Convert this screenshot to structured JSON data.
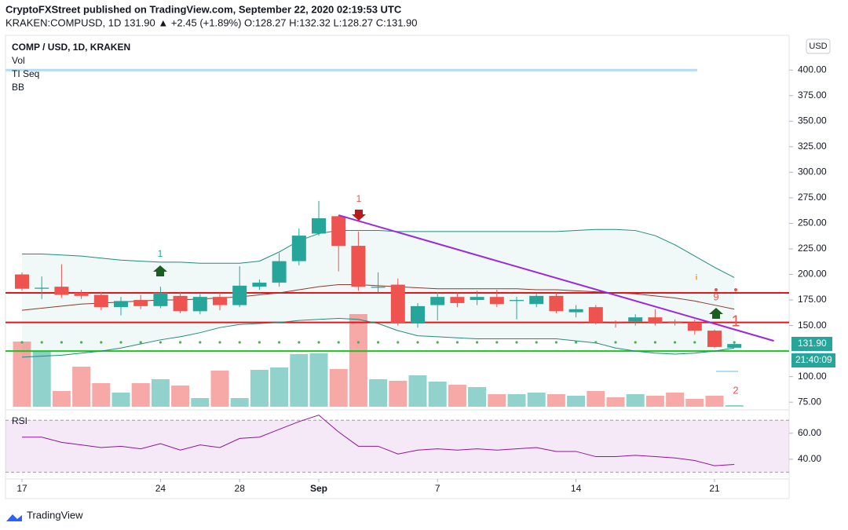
{
  "header": {
    "publisher": "CryptoFXStreet published on TradingView.com, September 22, 2020 02:19:53 UTC",
    "symbol_line": "KRAKEN:COMPUSD, 1D 131.90 ▲ +2.45 (+1.89%) O:128.27 H:132.32 L:128.27 C:131.90"
  },
  "legend": {
    "title": "COMP / USD, 1D, KRAKEN",
    "items": [
      "Vol",
      "TI Seq",
      "BB"
    ],
    "rsi": "RSI"
  },
  "footer": "TradingView",
  "chart_data": {
    "type": "candlestick",
    "currency": "USD",
    "open": [
      200,
      186,
      188,
      182,
      180,
      168,
      175,
      169,
      179,
      164,
      178,
      170,
      188,
      192,
      213,
      240,
      257,
      228,
      187,
      190,
      152,
      170,
      178,
      175,
      178,
      174,
      171,
      179,
      163,
      168,
      153,
      154,
      158,
      154,
      153,
      145,
      128.27
    ],
    "high": [
      202,
      198,
      210,
      185,
      183,
      178,
      180,
      188,
      183,
      181,
      182,
      208,
      195,
      221,
      245,
      272,
      258,
      242,
      202,
      196,
      172,
      183,
      182,
      184,
      185,
      178,
      181,
      182,
      170,
      170,
      155,
      161,
      166,
      156,
      156,
      146,
      132.32
    ],
    "low": [
      184,
      176,
      177,
      176,
      165,
      160,
      166,
      167,
      162,
      161,
      165,
      168,
      185,
      188,
      209,
      238,
      203,
      184,
      182,
      150,
      148,
      155,
      168,
      170,
      168,
      156,
      168,
      162,
      158,
      151,
      148,
      150,
      150,
      150,
      141,
      128,
      128.27
    ],
    "close": [
      186,
      187,
      180,
      179,
      168,
      174,
      169,
      182,
      164,
      178,
      170,
      189,
      192,
      213,
      238,
      255,
      228,
      188,
      188,
      152,
      169,
      178,
      172,
      178,
      171,
      175,
      179,
      164,
      166,
      153,
      152,
      158,
      152,
      153,
      145,
      129,
      131.9
    ],
    "volume": [
      83,
      71,
      20,
      51,
      30,
      18,
      30,
      35,
      27,
      11,
      46,
      11,
      47,
      50,
      67,
      68,
      48,
      118,
      35,
      33,
      40,
      32,
      28,
      25,
      16,
      16,
      18,
      16,
      14,
      20,
      12,
      16,
      14,
      18,
      10,
      14,
      2
    ],
    "bb_upper": [
      220,
      220,
      219,
      218,
      216,
      214,
      213,
      212,
      212,
      211,
      211,
      211,
      213,
      222,
      233,
      240,
      243,
      243,
      243,
      242,
      242,
      242,
      242,
      242,
      242,
      242,
      242,
      242,
      243,
      244,
      244,
      243,
      238,
      229,
      218,
      207,
      197
    ],
    "bb_middle": [
      165,
      167,
      169,
      171,
      172,
      173,
      174,
      175,
      175,
      176,
      177,
      178,
      180,
      182,
      185,
      188,
      190,
      190,
      189,
      188,
      187,
      186,
      186,
      186,
      186,
      186,
      185,
      185,
      184,
      183,
      182,
      181,
      179,
      177,
      174,
      170,
      166
    ],
    "bb_lower": [
      119,
      120,
      121,
      123,
      125,
      128,
      132,
      136,
      139,
      143,
      148,
      151,
      152,
      153,
      155,
      156,
      157,
      156,
      152,
      145,
      140,
      139,
      138,
      137,
      137,
      137,
      137,
      137,
      135,
      133,
      128,
      125,
      123,
      122,
      123,
      125,
      128
    ],
    "rsi": [
      57,
      57,
      53,
      51,
      49,
      50,
      48,
      52,
      47,
      51,
      49,
      56,
      57,
      63,
      69,
      74,
      61,
      50,
      50,
      44,
      47,
      48,
      47,
      48,
      47,
      48,
      49,
      46,
      46,
      42,
      42,
      43,
      42,
      41,
      39,
      35,
      36
    ],
    "rsi_bands": [
      30,
      70
    ],
    "rsi_ylim": [
      26,
      75
    ],
    "rsi_yticks": [
      {
        "value": 40,
        "label": "40.00"
      },
      {
        "value": 60,
        "label": "60.00"
      }
    ],
    "ylim": [
      69,
      434
    ],
    "yticks": [
      {
        "value": 75,
        "label": "75.00"
      },
      {
        "value": 100,
        "label": "100.00"
      },
      {
        "value": 150,
        "label": "150.00"
      },
      {
        "value": 175,
        "label": "175.00"
      },
      {
        "value": 200,
        "label": "200.00"
      },
      {
        "value": 225,
        "label": "225.00"
      },
      {
        "value": 250,
        "label": "250.00"
      },
      {
        "value": 275,
        "label": "275.00"
      },
      {
        "value": 300,
        "label": "300.00"
      },
      {
        "value": 325,
        "label": "325.00"
      },
      {
        "value": 350,
        "label": "350.00"
      },
      {
        "value": 375,
        "label": "375.00"
      },
      {
        "value": 400,
        "label": "400.00"
      }
    ],
    "xticks": [
      {
        "value": 0,
        "label": "17"
      },
      {
        "value": 7,
        "label": "24"
      },
      {
        "value": 11,
        "label": "28"
      },
      {
        "value": 15,
        "label": "Sep"
      },
      {
        "value": 21,
        "label": "7"
      },
      {
        "value": 28,
        "label": "14"
      },
      {
        "value": 35,
        "label": "21"
      }
    ],
    "horizontal_lines": [
      {
        "value": 182,
        "color": "#e5161b"
      },
      {
        "value": 153,
        "color": "#e5161b"
      },
      {
        "value": 125,
        "color": "#1bc41b"
      },
      {
        "value": 400,
        "color": "#b3dcf5"
      }
    ],
    "trendline": {
      "index": [
        16,
        38
      ],
      "values": [
        258,
        135
      ],
      "color": "#9c27e0"
    },
    "last_price_label": "131.90",
    "countdown": "21:40:09",
    "annotations": [
      "1",
      "1",
      "9",
      "1",
      "2"
    ],
    "colors": {
      "up": "#26a69a",
      "down": "#ef5350",
      "bb_mid": "#8d3a2c",
      "bb": "#1e8c7c",
      "rsi": "#8e1599"
    }
  }
}
